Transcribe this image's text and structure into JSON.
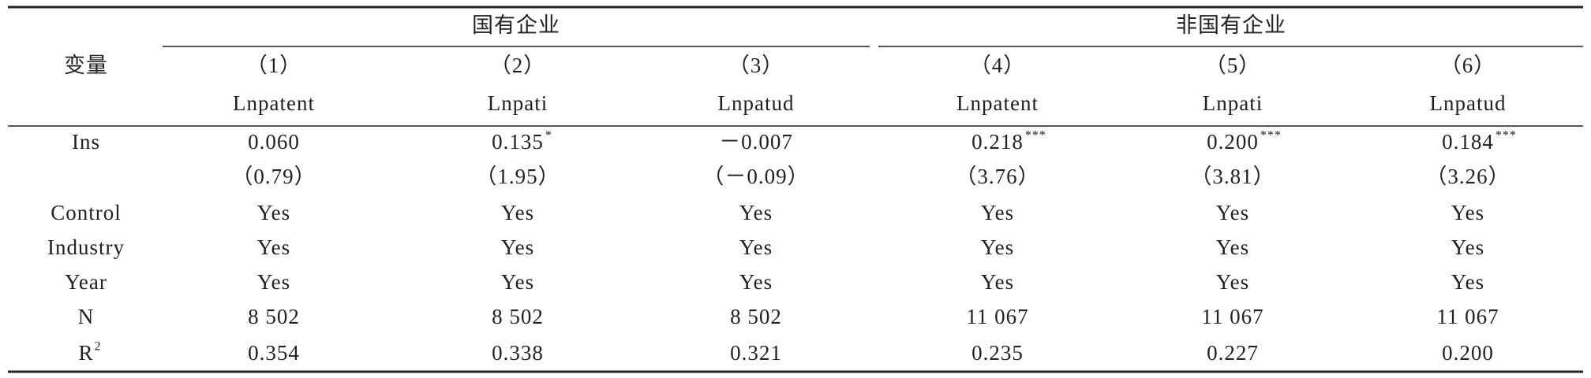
{
  "table": {
    "header": {
      "row_label": "变量",
      "groups": [
        "国有企业",
        "非国有企业"
      ],
      "numbers": [
        "（1）",
        "（2）",
        "（3）",
        "（4）",
        "（5）",
        "（6）"
      ],
      "dependent": [
        "Lnpatent",
        "Lnpati",
        "Lnpatud",
        "Lnpatent",
        "Lnpati",
        "Lnpatud"
      ]
    },
    "rows": [
      {
        "label": "Ins",
        "cells": [
          {
            "value": "0.060"
          },
          {
            "value": "0.135",
            "sup": "*"
          },
          {
            "value": "－0.007"
          },
          {
            "value": "0.218",
            "sup": "***"
          },
          {
            "value": "0.200",
            "sup": "***"
          },
          {
            "value": "0.184",
            "sup": "***"
          }
        ]
      },
      {
        "cells": [
          {
            "value": "（0.79）"
          },
          {
            "value": "（1.95）"
          },
          {
            "value": "（－0.09）"
          },
          {
            "value": "（3.76）"
          },
          {
            "value": "（3.81）"
          },
          {
            "value": "（3.26）"
          }
        ]
      },
      {
        "label": "Control",
        "cells": [
          {
            "value": "Yes"
          },
          {
            "value": "Yes"
          },
          {
            "value": "Yes"
          },
          {
            "value": "Yes"
          },
          {
            "value": "Yes"
          },
          {
            "value": "Yes"
          }
        ]
      },
      {
        "label": "Industry",
        "cells": [
          {
            "value": "Yes"
          },
          {
            "value": "Yes"
          },
          {
            "value": "Yes"
          },
          {
            "value": "Yes"
          },
          {
            "value": "Yes"
          },
          {
            "value": "Yes"
          }
        ]
      },
      {
        "label": "Year",
        "cells": [
          {
            "value": "Yes"
          },
          {
            "value": "Yes"
          },
          {
            "value": "Yes"
          },
          {
            "value": "Yes"
          },
          {
            "value": "Yes"
          },
          {
            "value": "Yes"
          }
        ]
      },
      {
        "label": "N",
        "cells": [
          {
            "value": "8 502"
          },
          {
            "value": "8 502"
          },
          {
            "value": "8 502"
          },
          {
            "value": "11 067"
          },
          {
            "value": "11 067"
          },
          {
            "value": "11 067"
          }
        ]
      },
      {
        "label": "R",
        "label_sup": "2",
        "cells": [
          {
            "value": "0.354"
          },
          {
            "value": "0.338"
          },
          {
            "value": "0.321"
          },
          {
            "value": "0.235"
          },
          {
            "value": "0.227"
          },
          {
            "value": "0.200"
          }
        ]
      }
    ]
  }
}
